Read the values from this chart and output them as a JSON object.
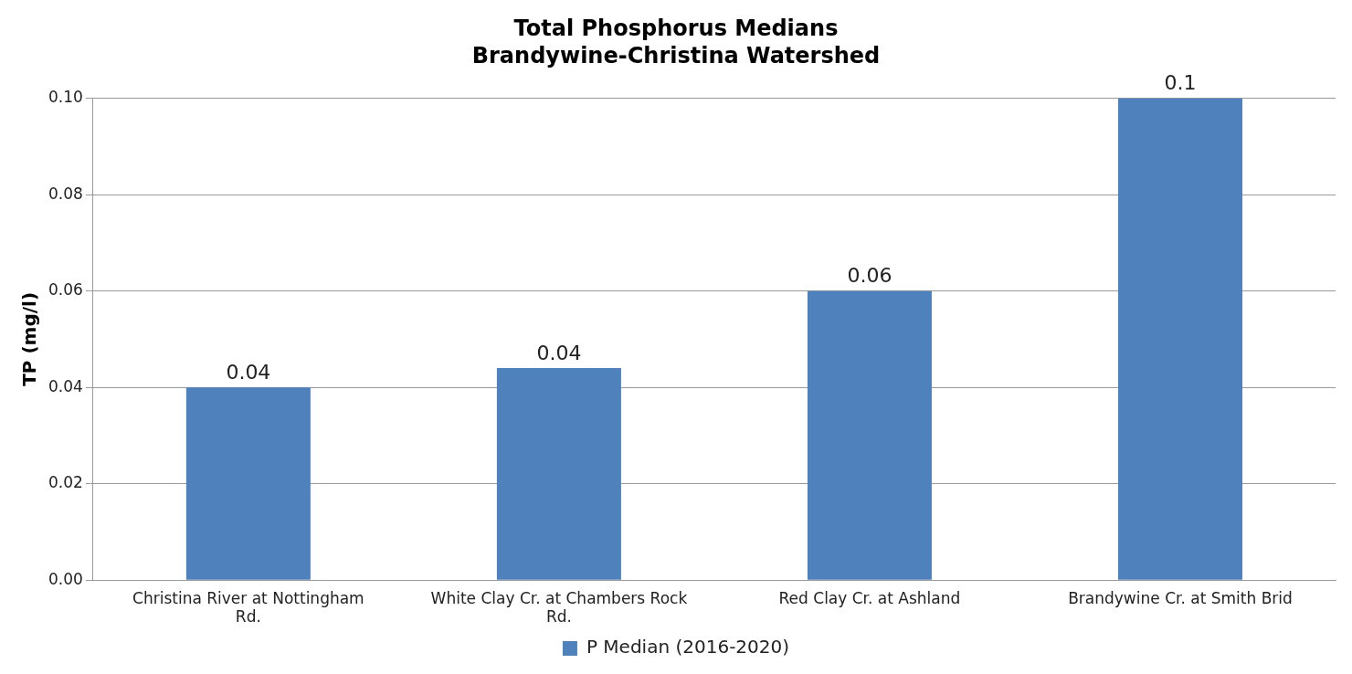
{
  "chart_data": {
    "type": "bar",
    "title": "Total Phosphorus Medians",
    "subtitle": "Brandywine-Christina Watershed",
    "ylabel": "TP (mg/l)",
    "categories": [
      "Christina River at Nottingham Rd.",
      "White Clay Cr. at Chambers Rock Rd.",
      "Red Clay Cr. at Ashland",
      "Brandywine Cr. at Smith Brid"
    ],
    "series": [
      {
        "name": "P Median (2016-2020)",
        "color": "#4f81bd",
        "values": [
          0.04,
          0.044,
          0.06,
          0.1
        ],
        "value_labels": [
          "0.04",
          "0.04",
          "0.06",
          "0.1"
        ]
      }
    ],
    "ylim": [
      0,
      0.1
    ],
    "yticks": [
      {
        "value": 0,
        "label": "0.00"
      },
      {
        "value": 0.02,
        "label": "0.02"
      },
      {
        "value": 0.04,
        "label": "0.04"
      },
      {
        "value": 0.06,
        "label": "0.06"
      },
      {
        "value": 0.08,
        "label": "0.08"
      },
      {
        "value": 0.1,
        "label": "0.10"
      }
    ],
    "grid": "y",
    "legend": "bottom"
  }
}
